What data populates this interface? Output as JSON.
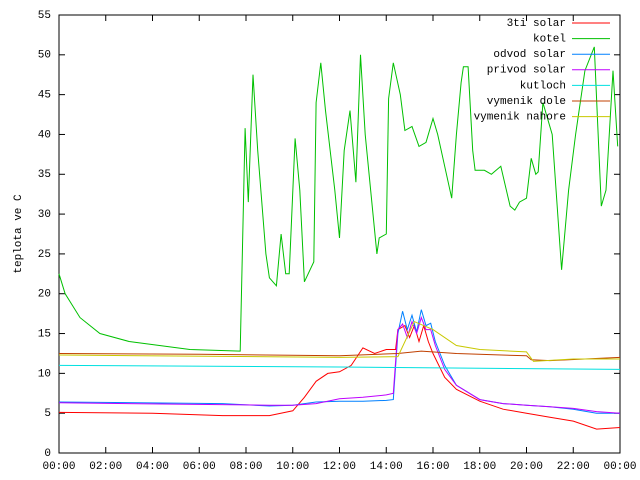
{
  "chart_data": {
    "type": "line",
    "ylabel": "teplota ve C",
    "xlim": [
      0,
      24
    ],
    "ylim": [
      0,
      55
    ],
    "xticks": [
      {
        "value": 0,
        "label": "00:00"
      },
      {
        "value": 2,
        "label": "02:00"
      },
      {
        "value": 4,
        "label": "04:00"
      },
      {
        "value": 6,
        "label": "06:00"
      },
      {
        "value": 8,
        "label": "08:00"
      },
      {
        "value": 10,
        "label": "10:00"
      },
      {
        "value": 12,
        "label": "12:00"
      },
      {
        "value": 14,
        "label": "14:00"
      },
      {
        "value": 16,
        "label": "16:00"
      },
      {
        "value": 18,
        "label": "18:00"
      },
      {
        "value": 20,
        "label": "20:00"
      },
      {
        "value": 22,
        "label": "22:00"
      },
      {
        "value": 24,
        "label": "00:00"
      }
    ],
    "yticks": [
      0,
      5,
      10,
      15,
      20,
      25,
      30,
      35,
      40,
      45,
      50,
      55
    ],
    "legend": "top-right",
    "series": [
      {
        "name": "3ti solar",
        "color": "#ff0000",
        "x": [
          0,
          4,
          7,
          9,
          10,
          10.5,
          11,
          11.5,
          12,
          12.5,
          13,
          13.5,
          14,
          14.4,
          14.5,
          14.8,
          15.0,
          15.2,
          15.4,
          15.6,
          15.8,
          16,
          16.5,
          17,
          18,
          19,
          20,
          21,
          22,
          23,
          24
        ],
        "values": [
          5.1,
          5,
          4.7,
          4.7,
          5.3,
          7,
          9,
          10,
          10.2,
          11,
          13.2,
          12.5,
          13,
          13,
          15.5,
          16,
          14.5,
          16,
          14,
          16,
          14,
          12.5,
          9.5,
          8,
          6.5,
          5.5,
          5,
          4.5,
          4,
          3,
          3.2
        ]
      },
      {
        "name": "kotel",
        "color": "#00c000",
        "x": [
          0,
          0.26,
          0.9,
          1.75,
          3,
          4.3,
          5.6,
          7.75,
          7.96,
          8.1,
          8.3,
          8.5,
          8.85,
          9.0,
          9.3,
          9.5,
          9.7,
          9.85,
          10.1,
          10.3,
          10.5,
          10.9,
          11.0,
          11.2,
          11.4,
          11.8,
          12.0,
          12.2,
          12.45,
          12.7,
          12.9,
          13.1,
          13.6,
          13.7,
          14.0,
          14.1,
          14.3,
          14.6,
          14.8,
          15.1,
          15.4,
          15.7,
          16.0,
          16.2,
          16.5,
          16.8,
          17.0,
          17.2,
          17.3,
          17.5,
          17.7,
          17.8,
          18.2,
          18.5,
          18.9,
          19.3,
          19.5,
          19.7,
          20.0,
          20.2,
          20.4,
          20.5,
          20.7,
          21.1,
          21.5,
          21.8,
          22.1,
          22.5,
          22.9,
          23.2,
          23.4,
          23.7,
          23.9
        ],
        "values": [
          22.5,
          20,
          17,
          15,
          14,
          13.5,
          13,
          12.8,
          40.8,
          31.5,
          47.5,
          38,
          25,
          22,
          21,
          27.5,
          22.5,
          22.5,
          39.5,
          33,
          21.5,
          24,
          44,
          49,
          43,
          33,
          27,
          38,
          43,
          34,
          50,
          40,
          25,
          27,
          27.5,
          44.5,
          49,
          45,
          40.5,
          41,
          38.5,
          39,
          42,
          40,
          36,
          32,
          40,
          46.5,
          48.5,
          48.5,
          38,
          35.5,
          35.5,
          35,
          36,
          31,
          30.5,
          31.5,
          32,
          37,
          35,
          35.3,
          44,
          40,
          23,
          33,
          40,
          48,
          51,
          31,
          33,
          48,
          38.5
        ]
      },
      {
        "name": "odvod solar",
        "color": "#0080ff",
        "x": [
          0,
          7,
          9,
          10,
          11,
          12,
          13,
          14,
          14.3,
          14.5,
          14.7,
          14.9,
          15.1,
          15.3,
          15.5,
          15.7,
          15.9,
          16.1,
          16.5,
          17,
          18,
          19,
          20,
          21,
          22,
          23,
          24
        ],
        "values": [
          6.4,
          6.2,
          5.9,
          6,
          6.4,
          6.5,
          6.5,
          6.6,
          6.7,
          15,
          17.8,
          15.5,
          17.3,
          15.2,
          18,
          16,
          16.3,
          14,
          11,
          8.5,
          6.7,
          6.2,
          6,
          5.8,
          5.5,
          5,
          5
        ]
      },
      {
        "name": "privod solar",
        "color": "#c000ff",
        "x": [
          0,
          9,
          10,
          11,
          12,
          13,
          14,
          14.3,
          14.5,
          14.7,
          14.9,
          15.1,
          15.3,
          15.5,
          15.7,
          15.9,
          16.1,
          16.5,
          17,
          18,
          19,
          20,
          21,
          22,
          23,
          24
        ],
        "values": [
          6.3,
          6,
          6,
          6.2,
          6.8,
          7,
          7.3,
          7.5,
          15.5,
          16.2,
          14.5,
          16.5,
          15,
          17,
          15.5,
          15.5,
          13.5,
          10.5,
          8.5,
          6.7,
          6.2,
          6,
          5.8,
          5.6,
          5.2,
          5
        ]
      },
      {
        "name": "kutloch",
        "color": "#00e0e0",
        "x": [
          0,
          12,
          24
        ],
        "values": [
          11,
          10.8,
          10.5
        ]
      },
      {
        "name": "vymenik dole",
        "color": "#c04000",
        "x": [
          0,
          6,
          12,
          14.5,
          15.5,
          17,
          20,
          20.2,
          21,
          24
        ],
        "values": [
          12.5,
          12.4,
          12.2,
          12.5,
          12.8,
          12.5,
          12.2,
          11.7,
          11.6,
          12
        ]
      },
      {
        "name": "vymenik nahore",
        "color": "#c8c800",
        "x": [
          0,
          12,
          14.5,
          15.2,
          16,
          17,
          18,
          20,
          20.3,
          22,
          24
        ],
        "values": [
          12.3,
          12,
          12.1,
          16.5,
          15.5,
          13.5,
          13,
          12.7,
          11.5,
          11.8,
          11.8
        ]
      }
    ]
  }
}
